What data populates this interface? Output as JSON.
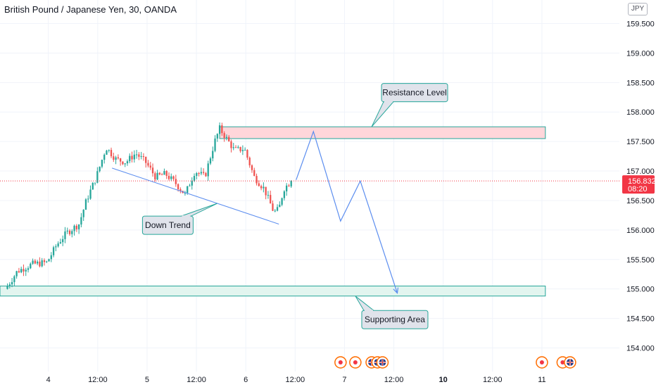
{
  "header": {
    "symbol_title": "British Pound / Japanese Yen, 30, OANDA",
    "currency_button": "JPY"
  },
  "price_label": {
    "price": "156.832",
    "countdown": "08:20",
    "color": "#f23645"
  },
  "colors": {
    "up": "#26a69a",
    "down": "#ef5350",
    "resistance_fill": "#ffd6da",
    "resistance_border": "#26a69a",
    "support_fill": "#e2f5ef",
    "support_border": "#26a69a",
    "projection": "#5b8def",
    "trendline": "#5b8def",
    "callout_fill": "#e0e3eb",
    "callout_border": "#26a69a"
  },
  "chart_data": {
    "type": "candlestick",
    "title": "British Pound / Japanese Yen, 30, OANDA",
    "xlabel": "",
    "ylabel": "",
    "ylim": [
      153.6,
      159.9
    ],
    "y_ticks": [
      "154.000",
      "154.500",
      "155.000",
      "155.500",
      "156.000",
      "156.500",
      "157.000",
      "157.500",
      "158.000",
      "158.500",
      "159.000",
      "159.500"
    ],
    "x_range": [
      -0.15,
      12.4
    ],
    "x_ticks": [
      {
        "label": "4",
        "t": 0.83,
        "bold": false
      },
      {
        "label": "12:00",
        "t": 1.83,
        "bold": false
      },
      {
        "label": "5",
        "t": 2.83,
        "bold": false
      },
      {
        "label": "12:00",
        "t": 3.83,
        "bold": false
      },
      {
        "label": "6",
        "t": 4.83,
        "bold": false
      },
      {
        "label": "12:00",
        "t": 5.83,
        "bold": false
      },
      {
        "label": "7",
        "t": 6.83,
        "bold": false
      },
      {
        "label": "12:00",
        "t": 7.83,
        "bold": false
      },
      {
        "label": "10",
        "t": 8.83,
        "bold": true
      },
      {
        "label": "12:00",
        "t": 9.83,
        "bold": false
      },
      {
        "label": "11",
        "t": 10.83,
        "bold": false
      }
    ],
    "close_path": [
      [
        0.0,
        155.05
      ],
      [
        0.2,
        155.3
      ],
      [
        0.5,
        155.42
      ],
      [
        0.8,
        155.45
      ],
      [
        1.0,
        155.75
      ],
      [
        1.2,
        155.95
      ],
      [
        1.45,
        156.1
      ],
      [
        1.6,
        156.5
      ],
      [
        1.8,
        156.9
      ],
      [
        2.0,
        157.4
      ],
      [
        2.2,
        157.2
      ],
      [
        2.4,
        157.15
      ],
      [
        2.6,
        157.3
      ],
      [
        2.8,
        157.15
      ],
      [
        3.0,
        156.9
      ],
      [
        3.2,
        156.95
      ],
      [
        3.4,
        156.8
      ],
      [
        3.6,
        156.6
      ],
      [
        3.8,
        157.0
      ],
      [
        4.0,
        156.9
      ],
      [
        4.2,
        157.5
      ],
      [
        4.3,
        157.72
      ],
      [
        4.4,
        157.6
      ],
      [
        4.6,
        157.35
      ],
      [
        4.8,
        157.38
      ],
      [
        5.0,
        156.9
      ],
      [
        5.2,
        156.7
      ],
      [
        5.4,
        156.3
      ],
      [
        5.5,
        156.35
      ],
      [
        5.6,
        156.7
      ],
      [
        5.75,
        156.83
      ]
    ],
    "candle_count": 124,
    "resistance_zone": {
      "t_start": 4.3,
      "t_end": 10.9,
      "low": 157.55,
      "high": 157.75
    },
    "support_zone": {
      "t_start": -0.15,
      "t_end": 10.9,
      "low": 154.88,
      "high": 155.05
    },
    "current_price": 156.832,
    "down_trend_line": [
      [
        2.12,
        157.05
      ],
      [
        5.5,
        156.1
      ]
    ],
    "projection_path": [
      [
        5.85,
        156.85
      ],
      [
        6.2,
        157.67
      ],
      [
        6.75,
        156.15
      ],
      [
        7.15,
        156.83
      ],
      [
        7.9,
        154.93
      ]
    ],
    "annotations": [
      {
        "name": "resistance-callout",
        "text": "Resistance Level",
        "t": 8.25,
        "y": 158.33,
        "w": 94,
        "h": 26,
        "anchor": [
          7.38,
          157.75
        ]
      },
      {
        "name": "down-trend-callout",
        "text": "Down Trend",
        "t": 3.25,
        "y": 156.08,
        "w": 72,
        "h": 26,
        "anchor": [
          4.25,
          156.45
        ]
      },
      {
        "name": "support-callout",
        "text": "Supporting Area",
        "t": 7.85,
        "y": 154.48,
        "w": 94,
        "h": 26,
        "anchor": [
          7.05,
          154.88
        ]
      }
    ],
    "event_markers": [
      {
        "t": 6.75,
        "kind": "dot"
      },
      {
        "t": 7.05,
        "kind": "dot"
      },
      {
        "t": 7.38,
        "kind": "flag"
      },
      {
        "t": 7.5,
        "kind": "flag"
      },
      {
        "t": 7.6,
        "kind": "flag"
      },
      {
        "t": 10.83,
        "kind": "dot"
      },
      {
        "t": 11.25,
        "kind": "dot"
      },
      {
        "t": 11.4,
        "kind": "flag"
      }
    ]
  }
}
